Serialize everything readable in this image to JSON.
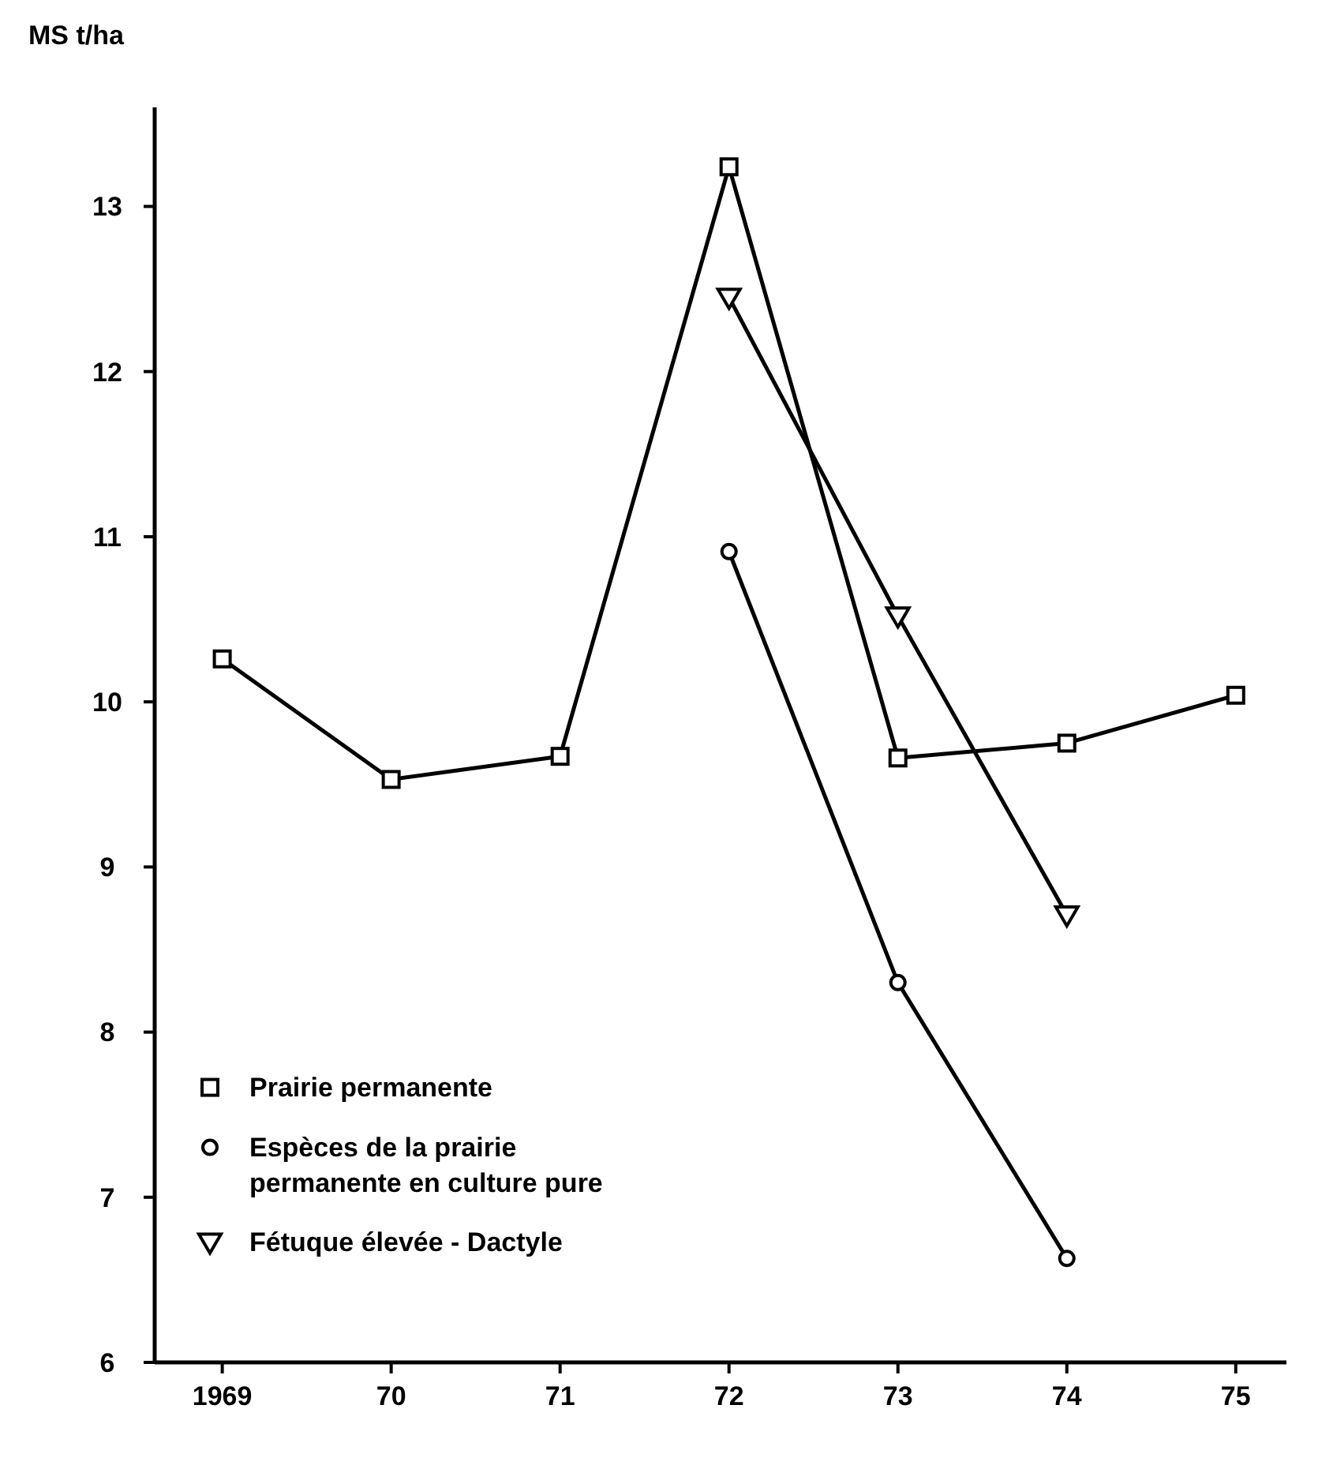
{
  "chart_data": {
    "type": "line",
    "ylabel": "MS t/ha",
    "xlim": [
      1968.6,
      1975.3
    ],
    "ylim": [
      6,
      13.6
    ],
    "xticks": [
      {
        "value": 1969,
        "label": "1969"
      },
      {
        "value": 1970,
        "label": "70"
      },
      {
        "value": 1971,
        "label": "71"
      },
      {
        "value": 1972,
        "label": "72"
      },
      {
        "value": 1973,
        "label": "73"
      },
      {
        "value": 1974,
        "label": "74"
      },
      {
        "value": 1975,
        "label": "75"
      }
    ],
    "yticks": [
      6,
      7,
      8,
      9,
      10,
      11,
      12,
      13
    ],
    "grid": false,
    "legend": "bottom left",
    "line_style": "solid",
    "series": [
      {
        "name": "Prairie permanente",
        "color": "#000000",
        "marker": "square",
        "x": [
          1969,
          1970,
          1971,
          1972,
          1973,
          1974,
          1975
        ],
        "values": [
          10.26,
          9.53,
          9.67,
          13.24,
          9.66,
          9.75,
          10.04
        ]
      },
      {
        "name": "Espèces de la prairie\npermanente en culture pure",
        "color": "#000000",
        "marker": "circle",
        "x": [
          1972,
          1973,
          1974
        ],
        "values": [
          10.91,
          8.3,
          6.63
        ]
      },
      {
        "name": "Fétuque élevée - Dactyle",
        "color": "#000000",
        "marker": "triangle",
        "x": [
          1972,
          1973,
          1974
        ],
        "values": [
          12.45,
          10.52,
          8.71
        ]
      }
    ]
  }
}
